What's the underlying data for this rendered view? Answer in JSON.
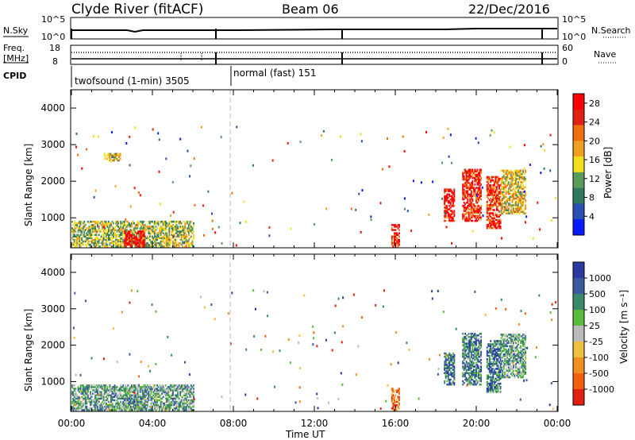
{
  "header": {
    "station": "Clyde River (fitACF)",
    "beam": "Beam 06",
    "date": "22/Dec/2016"
  },
  "noise_panel": {
    "left_label": "N.Sky",
    "left_ticks": [
      "10^5",
      "10^0"
    ],
    "right_label": "N.Search",
    "right_ticks": [
      "10^5",
      "10^0"
    ]
  },
  "freq_panel": {
    "left_label_1": "Freq.",
    "left_label_2": "[MHz]",
    "left_ticks": [
      "18",
      "8"
    ],
    "right_label": "Nave",
    "right_ticks": [
      "60",
      "0"
    ]
  },
  "cpid": {
    "label": "CPID",
    "segments": [
      {
        "text": "twofsound (1-min) 3505",
        "start": "00:00",
        "end": "08:00"
      },
      {
        "text": "normal (fast) 151",
        "start": "08:00",
        "end": "24:00"
      }
    ]
  },
  "colors": {
    "power": [
      "#0a1aff",
      "#2a4fb0",
      "#2f7a5a",
      "#5a9a5a",
      "#f0e020",
      "#f0a020",
      "#f07010",
      "#e02010",
      "#ff0000"
    ],
    "velocity": [
      "#2a3aa0",
      "#3a5aa0",
      "#3a8a6a",
      "#5aba3a",
      "#bbbbbb",
      "#f0c040",
      "#f09020",
      "#f06010",
      "#e02010"
    ]
  },
  "chart_data": [
    {
      "type": "heatmap",
      "panel": "power",
      "xlabel": "",
      "ylabel": "Slant Range [km]",
      "xlim": [
        0,
        24
      ],
      "ylim": [
        180,
        4500
      ],
      "y_ticks": [
        "1000",
        "2000",
        "3000",
        "4000"
      ],
      "colorbar_label": "Power [dB]",
      "colorbar_ticks": [
        "4",
        "8",
        "12",
        "16",
        "20",
        "24",
        "28"
      ],
      "colorbar_range": [
        0,
        30
      ],
      "patches": [
        {
          "t0": 0.0,
          "t1": 6.0,
          "r0": 200,
          "r1": 900,
          "level": 0.45
        },
        {
          "t0": 2.6,
          "t1": 3.6,
          "r0": 200,
          "r1": 650,
          "level": 0.95
        },
        {
          "t0": 1.6,
          "t1": 2.4,
          "r0": 2550,
          "r1": 2750,
          "level": 0.5
        },
        {
          "t0": 15.8,
          "t1": 16.2,
          "r0": 200,
          "r1": 800,
          "level": 0.9
        },
        {
          "t0": 18.4,
          "t1": 18.9,
          "r0": 900,
          "r1": 1800,
          "level": 0.95
        },
        {
          "t0": 19.3,
          "t1": 20.2,
          "r0": 900,
          "r1": 2300,
          "level": 0.85
        },
        {
          "t0": 20.5,
          "t1": 21.2,
          "r0": 700,
          "r1": 2100,
          "level": 0.85
        },
        {
          "t0": 21.2,
          "t1": 22.4,
          "r0": 1100,
          "r1": 2300,
          "level": 0.55
        }
      ]
    },
    {
      "type": "heatmap",
      "panel": "velocity",
      "xlabel": "Time UT",
      "ylabel": "Slant Range [km]",
      "xlim": [
        0,
        24
      ],
      "ylim": [
        180,
        4500
      ],
      "x_ticks": [
        "00:00",
        "04:00",
        "08:00",
        "12:00",
        "16:00",
        "20:00",
        "00:00"
      ],
      "y_ticks": [
        "1000",
        "2000",
        "3000",
        "4000"
      ],
      "colorbar_label": "Velocity [m s⁻¹]",
      "colorbar_ticks": [
        "1000",
        "500",
        "100",
        "25",
        "-25",
        "-100",
        "-500",
        "-1000"
      ],
      "patches": [
        {
          "t0": 0.0,
          "t1": 6.0,
          "r0": 200,
          "r1": 900,
          "level": 0.35
        },
        {
          "t0": 2.6,
          "t1": 3.6,
          "r0": 200,
          "r1": 650,
          "level": 0.3
        },
        {
          "t0": 15.8,
          "t1": 16.2,
          "r0": 200,
          "r1": 800,
          "level": 0.8
        },
        {
          "t0": 18.4,
          "t1": 18.9,
          "r0": 900,
          "r1": 1800,
          "level": 0.2
        },
        {
          "t0": 19.3,
          "t1": 20.2,
          "r0": 900,
          "r1": 2300,
          "level": 0.25
        },
        {
          "t0": 20.5,
          "t1": 21.2,
          "r0": 700,
          "r1": 2100,
          "level": 0.2
        },
        {
          "t0": 21.2,
          "t1": 22.4,
          "r0": 1100,
          "r1": 2300,
          "level": 0.35
        }
      ]
    }
  ]
}
